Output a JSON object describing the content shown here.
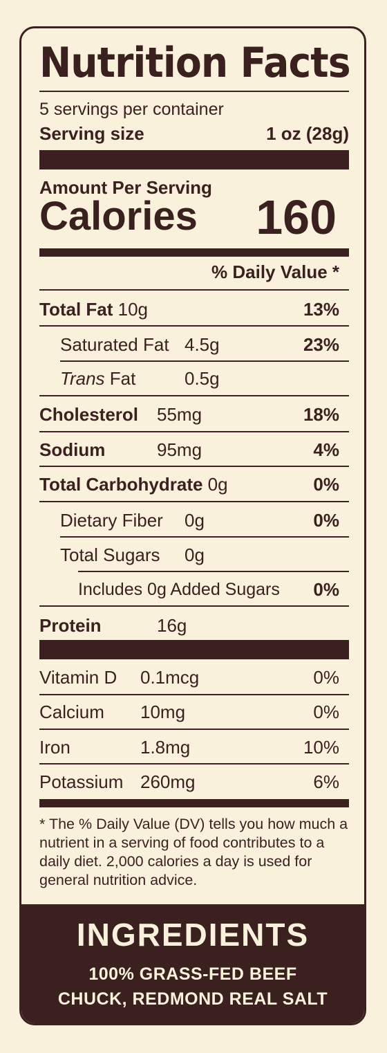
{
  "label": {
    "title": "Nutrition Facts",
    "servings_per_container": "5 servings per container",
    "serving_size_label": "Serving size",
    "serving_size_value": "1 oz (28g)",
    "amount_per_serving": "Amount Per Serving",
    "calories_label": "Calories",
    "calories_value": "160",
    "daily_value_header": "% Daily Value *",
    "nutrients": [
      {
        "name": "Total Fat",
        "amount": "10g",
        "dv": "13%"
      },
      {
        "name": "Saturated Fat",
        "amount": "4.5g",
        "dv": "23%"
      },
      {
        "name_italic": "Trans",
        "name": "Fat",
        "amount": "0.5g",
        "dv": ""
      },
      {
        "name": "Cholesterol",
        "amount": "55mg",
        "dv": "18%"
      },
      {
        "name": "Sodium",
        "amount": "95mg",
        "dv": "4%"
      },
      {
        "name": "Total Carbohydrate",
        "amount": "0g",
        "dv": "0%"
      },
      {
        "name": "Dietary Fiber",
        "amount": "0g",
        "dv": "0%"
      },
      {
        "name": "Total Sugars",
        "amount": "0g",
        "dv": ""
      },
      {
        "name": "Includes 0g Added Sugars",
        "amount": "",
        "dv": "0%"
      },
      {
        "name": "Protein",
        "amount": "16g",
        "dv": ""
      }
    ],
    "vitamins": [
      {
        "name": "Vitamin D",
        "amount": "0.1mcg",
        "dv": "0%"
      },
      {
        "name": "Calcium",
        "amount": "10mg",
        "dv": "0%"
      },
      {
        "name": "Iron",
        "amount": "1.8mg",
        "dv": "10%"
      },
      {
        "name": "Potassium",
        "amount": "260mg",
        "dv": "6%"
      }
    ],
    "footnote": "* The % Daily Value (DV) tells you how much a nutrient in a serving of food contributes to a daily diet. 2,000 calories a day is used for general nutrition advice."
  },
  "ingredients": {
    "heading": "INGREDIENTS",
    "line1": "100% GRASS-FED BEEF",
    "line2": "CHUCK, REDMOND REAL SALT"
  },
  "colors": {
    "background": "#f9f1dc",
    "ink": "#3a2120"
  }
}
